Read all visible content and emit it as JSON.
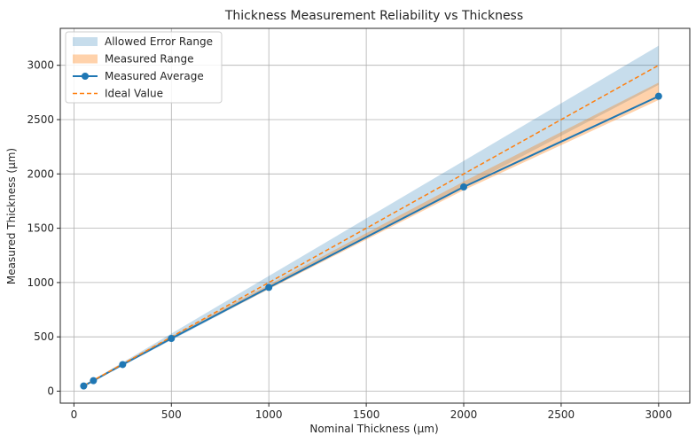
{
  "chart_data": {
    "type": "line",
    "title": "Thickness Measurement Reliability vs Thickness",
    "xlabel": "Nominal Thickness (µm)",
    "ylabel": "Measured Thickness (µm)",
    "xlim": [
      -70,
      3160
    ],
    "ylim": [
      -110,
      3340
    ],
    "xticks": [
      0,
      500,
      1000,
      1500,
      2000,
      2500,
      3000
    ],
    "yticks": [
      0,
      500,
      1000,
      1500,
      2000,
      2500,
      3000
    ],
    "grid": true,
    "legend_position": "top-left",
    "x": [
      50,
      100,
      250,
      500,
      1000,
      2000,
      3000
    ],
    "series": [
      {
        "name": "Allowed Error Range",
        "kind": "band",
        "color": "#1f77b4",
        "lower": [
          47,
          94,
          235,
          470,
          940,
          1880,
          2820
        ],
        "upper": [
          53,
          106,
          265,
          530,
          1060,
          2120,
          3180
        ]
      },
      {
        "name": "Measured Range",
        "kind": "band",
        "color": "#ff7f0e",
        "lower": [
          45,
          93,
          238,
          478,
          940,
          1850,
          2680
        ],
        "upper": [
          55,
          105,
          258,
          505,
          980,
          1930,
          2840
        ]
      },
      {
        "name": "Measured Average",
        "kind": "line-marker",
        "color": "#1f77b4",
        "values": [
          48,
          97,
          245,
          485,
          955,
          1880,
          2715
        ]
      },
      {
        "name": "Ideal Value",
        "kind": "dashed-line",
        "color": "#ff7f0e",
        "values": [
          50,
          100,
          250,
          500,
          1000,
          2000,
          3000
        ]
      }
    ]
  }
}
